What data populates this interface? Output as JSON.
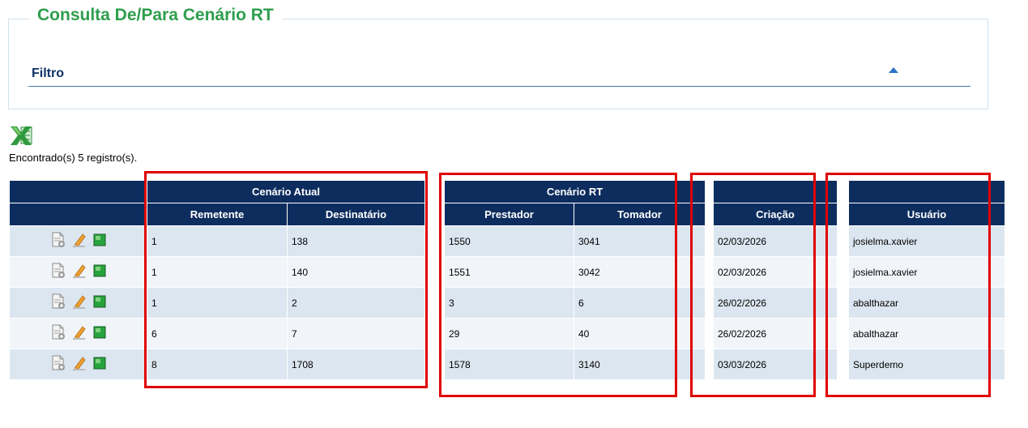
{
  "page": {
    "title": "Consulta De/Para Cenário RT"
  },
  "filter": {
    "label": "Filtro",
    "toggle_icon": "triangle-up-icon"
  },
  "export": {
    "icon": "excel-icon"
  },
  "results": {
    "count_text": "Encontrado(s) 5 registro(s)."
  },
  "table": {
    "group_headers": {
      "cenario_atual": "Cenário Atual",
      "cenario_rt": "Cenário RT"
    },
    "columns": {
      "remetente": "Remetente",
      "destinatario": "Destinatário",
      "prestador": "Prestador",
      "tomador": "Tomador",
      "criacao": "Criação",
      "usuario": "Usuário"
    },
    "row_action_icons": [
      "document-icon",
      "edit-pencil-icon",
      "green-square-icon"
    ],
    "rows": [
      {
        "remetente": "1",
        "destinatario": "138",
        "prestador": "1550",
        "tomador": "3041",
        "criacao": "02/03/2026",
        "usuario": "josielma.xavier"
      },
      {
        "remetente": "1",
        "destinatario": "140",
        "prestador": "1551",
        "tomador": "3042",
        "criacao": "02/03/2026",
        "usuario": "josielma.xavier"
      },
      {
        "remetente": "1",
        "destinatario": "2",
        "prestador": "3",
        "tomador": "6",
        "criacao": "26/02/2026",
        "usuario": "abalthazar"
      },
      {
        "remetente": "6",
        "destinatario": "7",
        "prestador": "29",
        "tomador": "40",
        "criacao": "26/02/2026",
        "usuario": "abalthazar"
      },
      {
        "remetente": "8",
        "destinatario": "1708",
        "prestador": "1578",
        "tomador": "3140",
        "criacao": "03/03/2026",
        "usuario": "Superdemo"
      }
    ]
  },
  "colors": {
    "header_bg": "#0d2d5e",
    "title_green": "#2e9e4d",
    "highlight_red": "#e00000",
    "row_odd": "#dce6f0",
    "row_even": "#f1f5fa"
  }
}
